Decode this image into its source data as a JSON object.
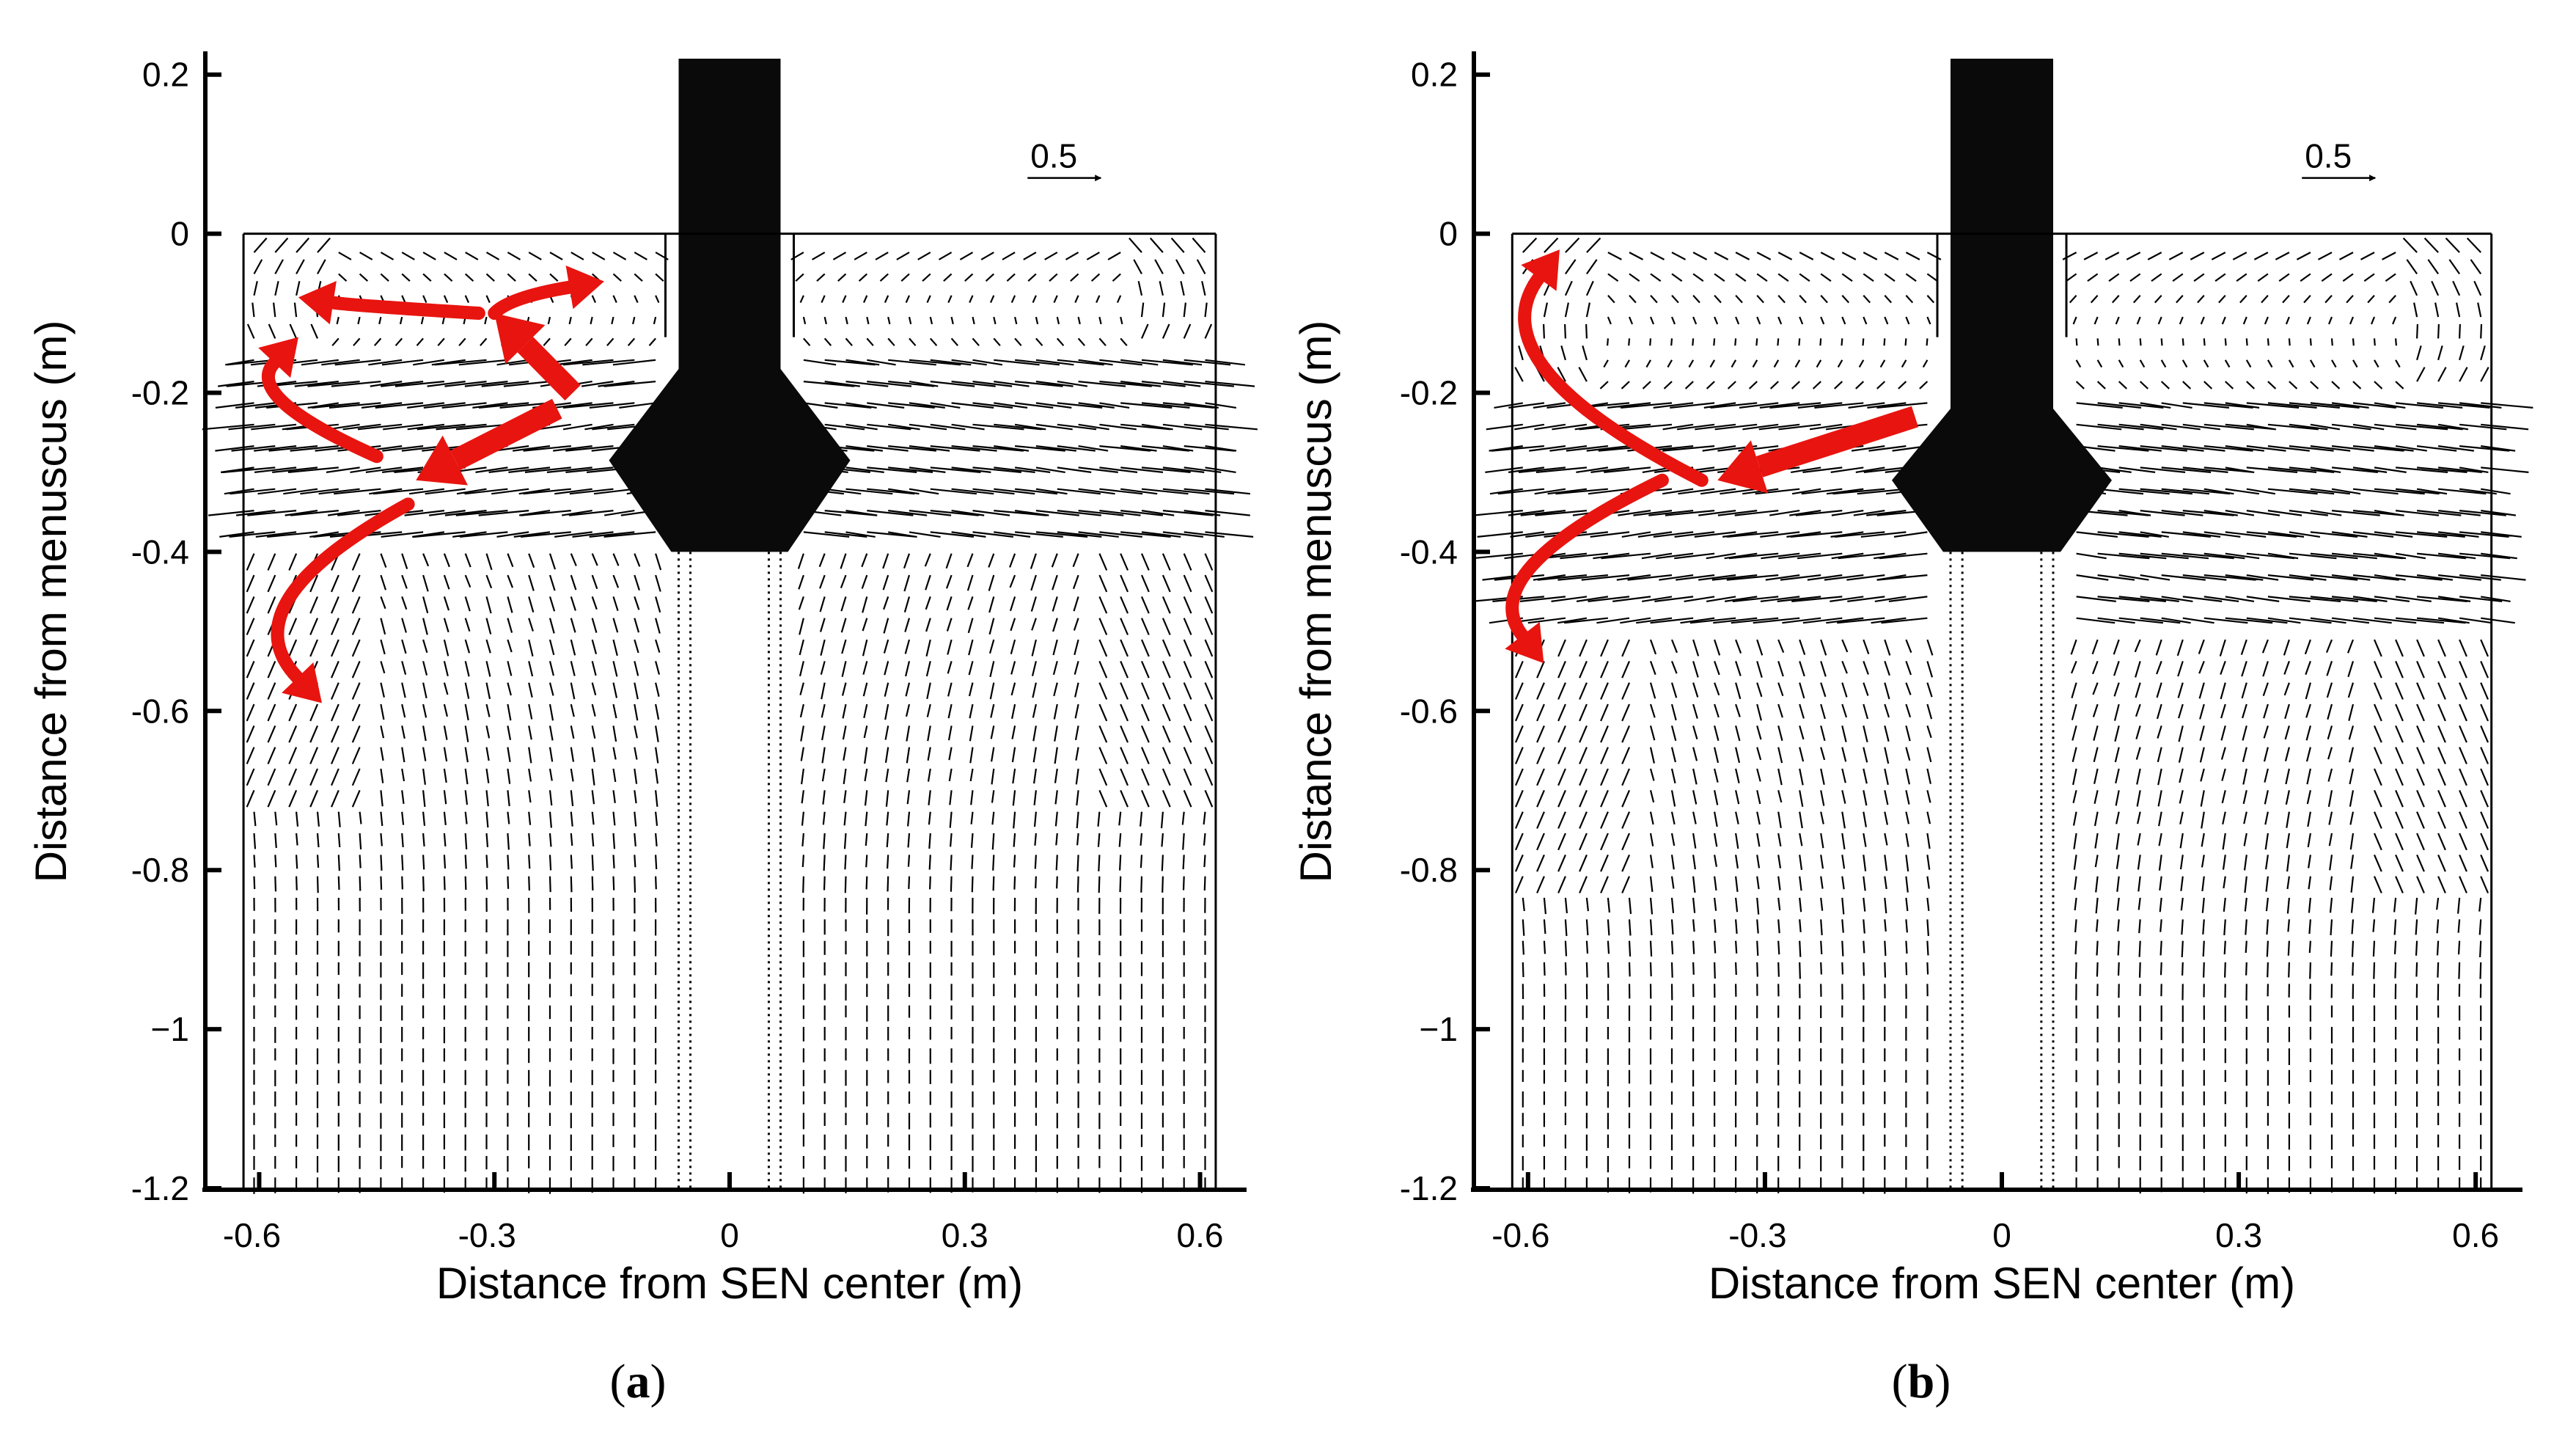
{
  "chart_data": [
    {
      "type": "vector-field",
      "panel_label": "a",
      "xlabel": "Distance from SEN center (m)",
      "ylabel": "Distance from menuscus (m)",
      "xlim": [
        -0.65,
        0.65
      ],
      "ylim": [
        -1.2,
        0.22
      ],
      "xticks": [
        -0.6,
        -0.3,
        0,
        0.3,
        0.6
      ],
      "xtick_labels": [
        "-0.6",
        "-0.3",
        "0",
        "0.3",
        "0.6"
      ],
      "yticks": [
        0.2,
        0,
        -0.2,
        -0.4,
        -0.6,
        -0.8,
        -1,
        -1.2
      ],
      "ytick_labels": [
        "0.2",
        "0",
        "-0.2",
        "-0.4",
        "-0.6",
        "-0.8",
        "−1",
        "-1.2"
      ],
      "reference_vector": {
        "label": "0.5",
        "value": 0.5
      },
      "mold": {
        "x_range": [
          -0.62,
          0.62
        ],
        "top": 0,
        "bottom": -1.2
      },
      "sen": {
        "x_range": [
          -0.065,
          0.065
        ],
        "top": 0.22,
        "bottom": -0.4
      },
      "jet_depth": [
        -0.15,
        -0.35
      ],
      "flow_arrows": [
        {
          "from": [
            -0.22,
            -0.22
          ],
          "to": [
            -0.4,
            -0.31
          ],
          "kind": "straight"
        },
        {
          "from": [
            -0.2,
            -0.2
          ],
          "to": [
            -0.3,
            -0.1
          ],
          "kind": "straight"
        },
        {
          "from": [
            -0.32,
            -0.1
          ],
          "to": [
            -0.55,
            -0.08
          ],
          "kind": "curved"
        },
        {
          "from": [
            -0.3,
            -0.1
          ],
          "to": [
            -0.16,
            -0.06
          ],
          "kind": "curved"
        },
        {
          "from": [
            -0.45,
            -0.28
          ],
          "to": [
            -0.55,
            -0.13
          ],
          "kind": "curved"
        },
        {
          "from": [
            -0.41,
            -0.34
          ],
          "to": [
            -0.52,
            -0.59
          ],
          "kind": "curved"
        }
      ]
    },
    {
      "type": "vector-field",
      "panel_label": "b",
      "xlabel": "Distance from SEN center (m)",
      "ylabel": "Distance from menuscus (m)",
      "xlim": [
        -0.65,
        0.65
      ],
      "ylim": [
        -1.2,
        0.22
      ],
      "xticks": [
        -0.6,
        -0.3,
        0,
        0.3,
        0.6
      ],
      "xtick_labels": [
        "-0.6",
        "-0.3",
        "0",
        "0.3",
        "0.6"
      ],
      "yticks": [
        0.2,
        0,
        -0.2,
        -0.4,
        -0.6,
        -0.8,
        -1,
        -1.2
      ],
      "ytick_labels": [
        "0.2",
        "0",
        "-0.2",
        "-0.4",
        "-0.6",
        "-0.8",
        "−1",
        "-1.2"
      ],
      "reference_vector": {
        "label": "0.5",
        "value": 0.5
      },
      "mold": {
        "x_range": [
          -0.62,
          0.62
        ],
        "top": 0,
        "bottom": -1.2
      },
      "sen": {
        "x_range": [
          -0.065,
          0.065
        ],
        "top": 0.22,
        "bottom": -0.4
      },
      "jet_depth": [
        -0.2,
        -0.46
      ],
      "flow_arrows": [
        {
          "from": [
            -0.11,
            -0.23
          ],
          "to": [
            -0.36,
            -0.31
          ],
          "kind": "straight"
        },
        {
          "from": [
            -0.38,
            -0.31
          ],
          "to": [
            -0.56,
            -0.02
          ],
          "kind": "curved"
        },
        {
          "from": [
            -0.43,
            -0.31
          ],
          "to": [
            -0.58,
            -0.54
          ],
          "kind": "curved"
        }
      ]
    }
  ]
}
